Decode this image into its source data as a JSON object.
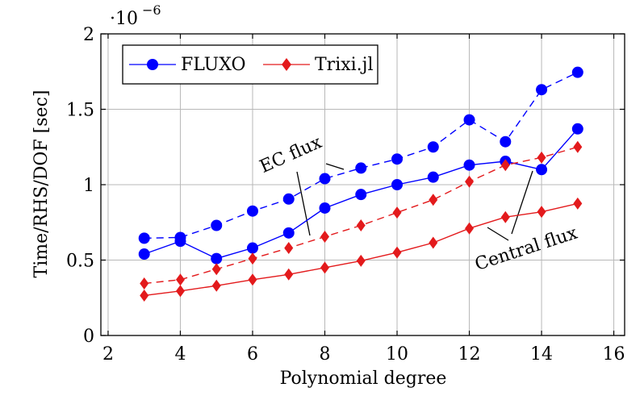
{
  "chart_data": {
    "type": "line",
    "xlabel": "Polynomial degree",
    "ylabel": "Time/RHS/DOF [sec]",
    "xlim": [
      1.8,
      16.3
    ],
    "ylim": [
      0,
      2
    ],
    "xticks": [
      2,
      4,
      6,
      8,
      10,
      12,
      14,
      16
    ],
    "yticks": [
      0,
      0.5,
      1,
      1.5,
      2
    ],
    "ytick_labels": [
      "0",
      "0.5",
      "1",
      "1.5",
      "2"
    ],
    "y_scale_factor_label": "·10",
    "y_scale_factor_exponent": "−6",
    "grid": true,
    "legend_position": "top-left",
    "legend": [
      {
        "name": "FLUXO",
        "color": "#0000ff",
        "marker": "circle"
      },
      {
        "name": "Trixi.jl",
        "color": "#e31a1c",
        "marker": "diamond"
      }
    ],
    "annotations": [
      {
        "text": "EC flux"
      },
      {
        "text": "Central flux"
      }
    ],
    "series": [
      {
        "legend": "FLUXO",
        "variant": "EC flux",
        "dash": "dashed",
        "color": "#0000ff",
        "marker": "circle",
        "x": [
          3,
          4,
          5,
          6,
          7,
          8,
          9,
          10,
          11,
          12,
          13,
          14,
          15
        ],
        "values": [
          0.645,
          0.65,
          0.73,
          0.825,
          0.905,
          1.04,
          1.11,
          1.17,
          1.25,
          1.43,
          1.285,
          1.63,
          1.745
        ]
      },
      {
        "legend": "FLUXO",
        "variant": "Central flux",
        "dash": "solid",
        "color": "#0000ff",
        "marker": "circle",
        "x": [
          3,
          4,
          5,
          6,
          7,
          8,
          9,
          10,
          11,
          12,
          13,
          14,
          15
        ],
        "values": [
          0.54,
          0.625,
          0.51,
          0.58,
          0.68,
          0.845,
          0.935,
          1.0,
          1.05,
          1.13,
          1.155,
          1.1,
          1.37
        ]
      },
      {
        "legend": "Trixi.jl",
        "variant": "EC flux",
        "dash": "dashed",
        "color": "#e31a1c",
        "marker": "diamond",
        "x": [
          3,
          4,
          5,
          6,
          7,
          8,
          9,
          10,
          11,
          12,
          13,
          14,
          15
        ],
        "values": [
          0.345,
          0.37,
          0.44,
          0.51,
          0.58,
          0.655,
          0.73,
          0.815,
          0.9,
          1.02,
          1.13,
          1.18,
          1.25
        ]
      },
      {
        "legend": "Trixi.jl",
        "variant": "Central flux",
        "dash": "solid",
        "color": "#e31a1c",
        "marker": "diamond",
        "x": [
          3,
          4,
          5,
          6,
          7,
          8,
          9,
          10,
          11,
          12,
          13,
          14,
          15
        ],
        "values": [
          0.265,
          0.295,
          0.33,
          0.37,
          0.405,
          0.45,
          0.495,
          0.55,
          0.615,
          0.71,
          0.785,
          0.82,
          0.875
        ]
      }
    ]
  }
}
